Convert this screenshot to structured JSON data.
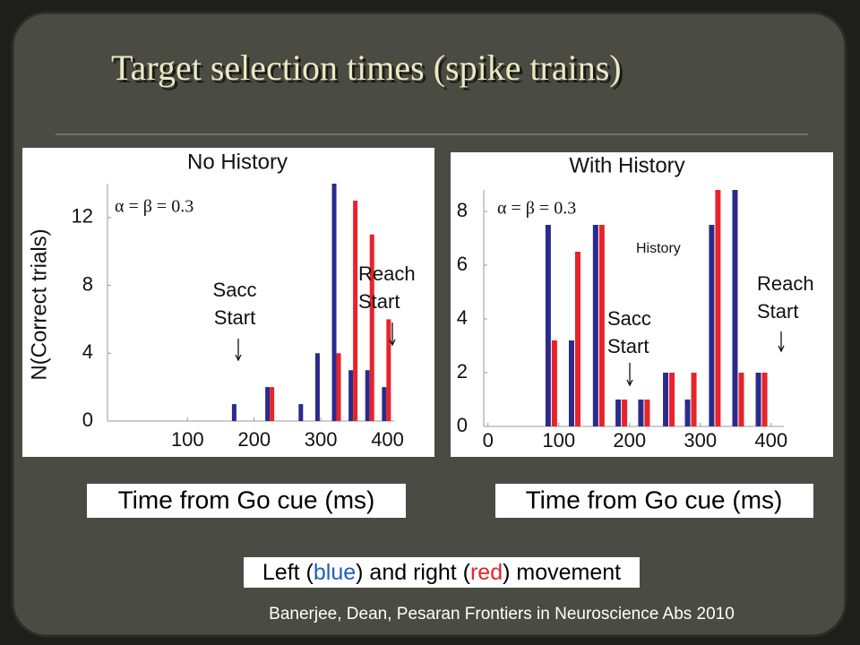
{
  "title": "Target selection times (spike trains)",
  "chart_data": [
    {
      "type": "bar",
      "title": "No History",
      "ylabel": "N(Correct trials)",
      "xlabel": "Time from Go cue (ms)",
      "x": [
        170,
        220,
        270,
        295,
        320,
        345,
        370,
        395
      ],
      "series": [
        {
          "name": "Left",
          "color": "#2b2b8c",
          "values": [
            1,
            2,
            1,
            4,
            14,
            3,
            3,
            2
          ]
        },
        {
          "name": "Right",
          "color": "#e8232a",
          "values": [
            0,
            2,
            0,
            0,
            4,
            13,
            11,
            6
          ]
        }
      ],
      "xlim": [
        -20,
        410
      ],
      "xticks": [
        100,
        200,
        300,
        400
      ],
      "ylim": [
        0,
        14
      ],
      "yticks": [
        0,
        4,
        8,
        12
      ],
      "annotations": [
        {
          "lines": [
            "α = β = 0.3"
          ]
        },
        {
          "lines": [
            "Sacc",
            "Start"
          ]
        },
        {
          "lines": [
            "Reach",
            "Start"
          ]
        }
      ]
    },
    {
      "type": "bar",
      "title": "With History",
      "xlabel": "Time from Go cue (ms)",
      "x": [
        85,
        118,
        152,
        184,
        216,
        251,
        282,
        316,
        349,
        382
      ],
      "series": [
        {
          "name": "Left",
          "color": "#2b2b8c",
          "values": [
            7.5,
            3.2,
            7.5,
            1,
            1,
            2,
            1,
            7.5,
            9,
            2
          ]
        },
        {
          "name": "Right",
          "color": "#e8232a",
          "values": [
            3.2,
            6.5,
            7.5,
            1,
            1,
            2,
            2,
            9,
            2,
            2
          ]
        }
      ],
      "xlim": [
        -6,
        418
      ],
      "xticks": [
        0,
        100,
        200,
        300,
        400
      ],
      "ylim": [
        0,
        8.8
      ],
      "yticks": [
        0,
        2,
        4,
        6,
        8
      ],
      "annotations": [
        {
          "lines": [
            "α = β = 0.3"
          ]
        },
        {
          "lines": [
            "History"
          ]
        },
        {
          "lines": [
            "Sacc",
            "Start"
          ]
        },
        {
          "lines": [
            "Reach",
            "Start"
          ]
        }
      ]
    }
  ],
  "legend_note": [
    "Left (",
    "blue",
    ") and right (",
    "red",
    ") movement"
  ],
  "citation": "Banerjee, Dean, Pesaran Frontiers in Neuroscience Abs 2010"
}
